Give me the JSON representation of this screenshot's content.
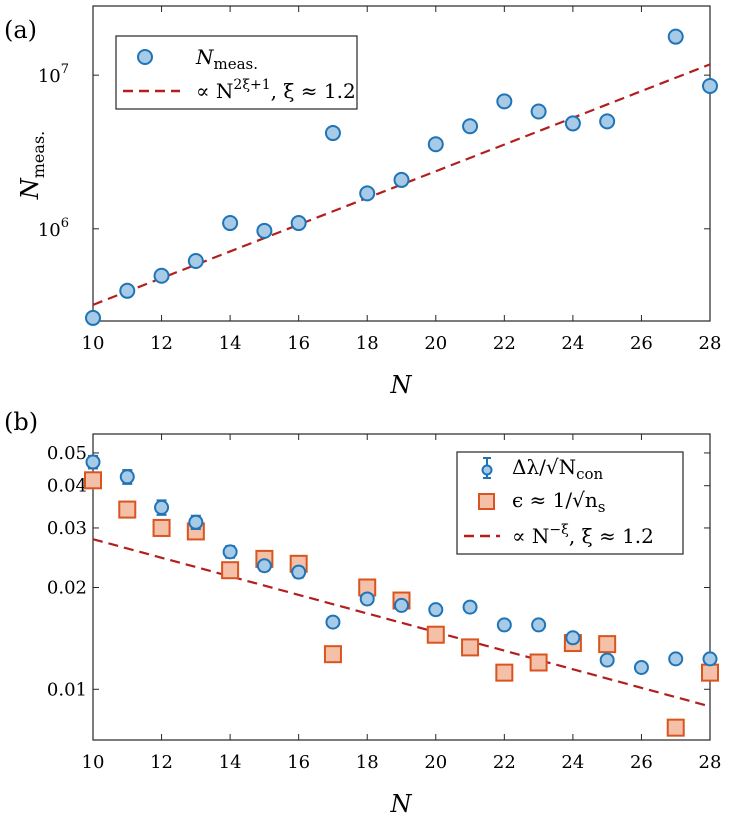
{
  "chart_data": [
    {
      "panel_label": "(a)",
      "type": "scatter",
      "xlabel": "N",
      "ylabel": "N",
      "ylabel_sub": "meas.",
      "xlim": [
        10,
        28
      ],
      "ylim_log10": [
        5.4,
        7.45
      ],
      "yscale": "log",
      "x_ticks": [
        "10",
        "12",
        "14",
        "16",
        "18",
        "20",
        "22",
        "24",
        "26",
        "28"
      ],
      "y_ticks": [
        {
          "value": 1000000,
          "base": "10",
          "exp": "6"
        },
        {
          "value": 10000000,
          "base": "10",
          "exp": "7"
        }
      ],
      "series": [
        {
          "name": "N",
          "name_sub": "meas.",
          "kind": "markers",
          "x": [
            10,
            11,
            12,
            13,
            14,
            15,
            16,
            17,
            18,
            19,
            20,
            21,
            22,
            23,
            24,
            25,
            27,
            28
          ],
          "y": [
            263000,
            395000,
            495000,
            617000,
            1090000,
            970000,
            1090000,
            4200000,
            1700000,
            2080000,
            3550000,
            4650000,
            6750000,
            5800000,
            4850000,
            5000000,
            17800000,
            8500000
          ]
        },
        {
          "name": "∝ N",
          "name_sup": "2ξ+1",
          "name_tail": ", ξ ≈ 1.2",
          "kind": "fit",
          "x": [
            10,
            28
          ],
          "y": [
            320000,
            11750000
          ]
        }
      ],
      "legend": "top-left",
      "colors": {
        "marker_fill": "#a7cbe6",
        "marker_edge": "#1f74b8",
        "fit": "#b21f1f"
      }
    },
    {
      "panel_label": "(b)",
      "type": "scatter",
      "xlabel": "N",
      "xlim": [
        10,
        28
      ],
      "ylim_log10": [
        -2.15,
        -1.245
      ],
      "yscale": "log",
      "x_ticks": [
        "10",
        "12",
        "14",
        "16",
        "18",
        "20",
        "22",
        "24",
        "26",
        "28"
      ],
      "y_ticks": [
        {
          "value": 0.01,
          "label": "0.01"
        },
        {
          "value": 0.02,
          "label": "0.02"
        },
        {
          "value": 0.03,
          "label": "0.03"
        },
        {
          "value": 0.04,
          "label": "0.04"
        },
        {
          "value": 0.05,
          "label": "0.05"
        }
      ],
      "series": [
        {
          "name": "Δλ/√N",
          "name_sub": "con",
          "kind": "errorbar",
          "x": [
            10,
            11,
            12,
            13,
            14,
            15,
            16,
            17,
            18,
            19,
            20,
            21,
            22,
            23,
            24,
            25,
            26,
            27,
            28
          ],
          "y": [
            0.047,
            0.0425,
            0.0345,
            0.0312,
            0.0255,
            0.0232,
            0.0222,
            0.0158,
            0.0185,
            0.0177,
            0.0172,
            0.0175,
            0.0155,
            0.0155,
            0.0142,
            0.0122,
            0.0116,
            0.0123,
            0.0123
          ],
          "err": [
            0.002,
            0.002,
            0.0017,
            0.0014,
            0.001,
            0.0008,
            0.0008,
            0.0004,
            0.0006,
            0.0005,
            0.0005,
            0.0005,
            0.0003,
            0.0003,
            0.0003,
            0.0002,
            0.0002,
            0.0002,
            0.0002
          ]
        },
        {
          "name": "ϵ ≈ 1/√n",
          "name_sub": "s",
          "kind": "squares",
          "x": [
            10,
            11,
            12,
            13,
            14,
            15,
            16,
            17,
            18,
            19,
            20,
            21,
            22,
            23,
            24,
            25,
            27,
            28
          ],
          "y": [
            0.0415,
            0.034,
            0.03,
            0.0293,
            0.0225,
            0.0243,
            0.0235,
            0.0127,
            0.02,
            0.0183,
            0.0145,
            0.0133,
            0.0112,
            0.012,
            0.0137,
            0.0136,
            0.0077,
            0.0112
          ]
        },
        {
          "name": "∝ N",
          "name_sup": "−ξ",
          "name_tail": ", ξ ≈ 1.2",
          "kind": "fit",
          "x": [
            10,
            28
          ],
          "y": [
            0.0278,
            0.0089
          ]
        }
      ],
      "legend": "top-right",
      "colors": {
        "marker_fill": "#a7cbe6",
        "marker_edge": "#1f74b8",
        "square_fill": "#f4c0a8",
        "square_edge": "#d9541e",
        "fit": "#b21f1f"
      }
    }
  ]
}
